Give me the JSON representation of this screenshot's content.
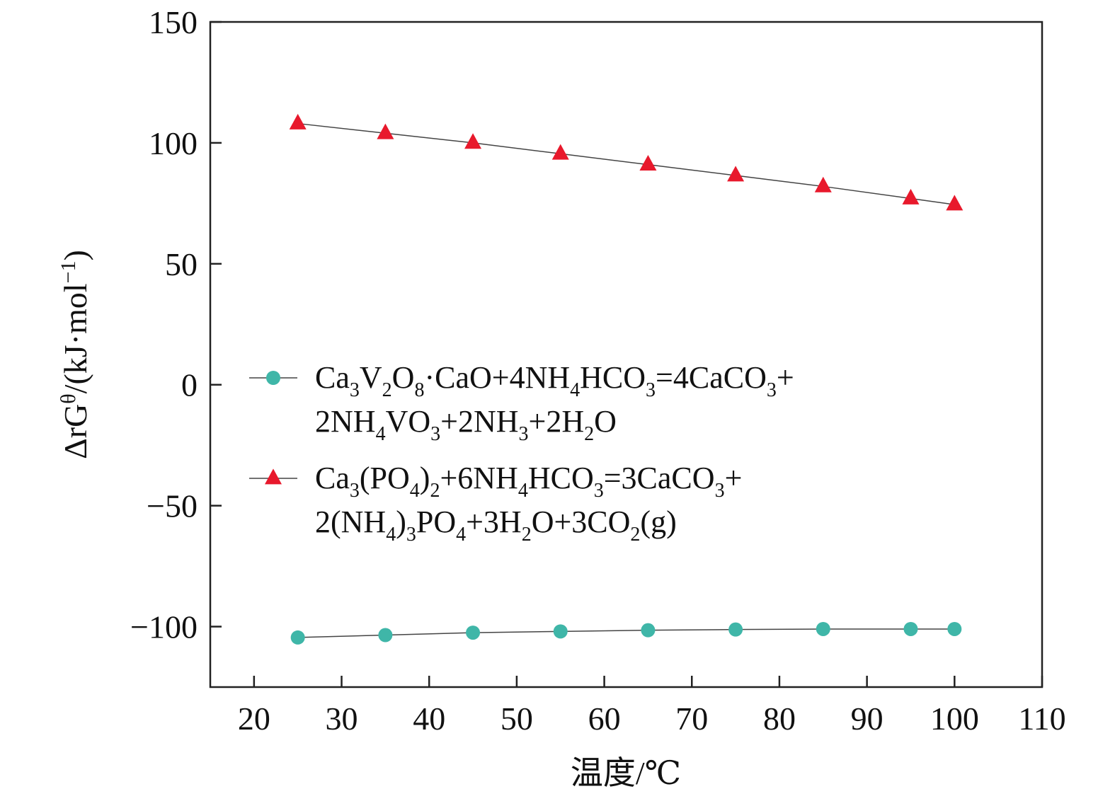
{
  "chart_data": {
    "type": "line",
    "xlabel": "温度/℃",
    "ylabel": {
      "pre": "ΔrG",
      "sup1": "θ",
      "mid": "/(kJ·mol",
      "sup2": "−1",
      "post": ")"
    },
    "xlim": [
      15,
      110
    ],
    "ylim": [
      -125,
      150
    ],
    "xticks": [
      20,
      30,
      40,
      50,
      60,
      70,
      80,
      90,
      100,
      110
    ],
    "yticks": [
      -100,
      -50,
      0,
      50,
      100,
      150
    ],
    "ytick_labels": [
      "−100",
      "−50",
      "0",
      "50",
      "100",
      "150"
    ],
    "grid": false,
    "legend_position": "center-left",
    "series": [
      {
        "name": "Ca3V2O8·CaO+4NH4HCO3=4CaCO3+2NH4VO3+2NH3+2H2O",
        "name_lines": [
          [
            [
              "Ca",
              ""
            ],
            [
              "3",
              "sub"
            ],
            [
              "V",
              ""
            ],
            [
              "2",
              "sub"
            ],
            [
              "O",
              ""
            ],
            [
              "8",
              "sub"
            ],
            [
              "·CaO+4NH",
              ""
            ],
            [
              "4",
              "sub"
            ],
            [
              "HCO",
              ""
            ],
            [
              "3",
              "sub"
            ],
            [
              "=4CaCO",
              ""
            ],
            [
              "3",
              "sub"
            ],
            [
              "+",
              ""
            ]
          ],
          [
            [
              "2NH",
              ""
            ],
            [
              "4",
              "sub"
            ],
            [
              "VO",
              ""
            ],
            [
              "3",
              "sub"
            ],
            [
              "+2NH",
              ""
            ],
            [
              "3",
              "sub"
            ],
            [
              "+2H",
              ""
            ],
            [
              "2",
              "sub"
            ],
            [
              "O",
              ""
            ]
          ]
        ],
        "marker": "circle",
        "color": "#3fb6a8",
        "x": [
          25,
          35,
          45,
          55,
          65,
          75,
          85,
          95,
          100
        ],
        "y": [
          -104.5,
          -103.5,
          -102.5,
          -102.0,
          -101.5,
          -101.2,
          -101.0,
          -101.0,
          -101.0
        ]
      },
      {
        "name": "Ca3(PO4)2+6NH4HCO3=3CaCO3+2(NH4)3PO4+3H2O+3CO2(g)",
        "name_lines": [
          [
            [
              "Ca",
              ""
            ],
            [
              "3",
              "sub"
            ],
            [
              "(PO",
              ""
            ],
            [
              "4",
              "sub"
            ],
            [
              ")",
              ""
            ],
            [
              "2",
              "sub"
            ],
            [
              "+6NH",
              ""
            ],
            [
              "4",
              "sub"
            ],
            [
              "HCO",
              ""
            ],
            [
              "3",
              "sub"
            ],
            [
              "=3CaCO",
              ""
            ],
            [
              "3",
              "sub"
            ],
            [
              "+",
              ""
            ]
          ],
          [
            [
              "2(NH",
              ""
            ],
            [
              "4",
              "sub"
            ],
            [
              ")",
              ""
            ],
            [
              "3",
              "sub"
            ],
            [
              "PO",
              ""
            ],
            [
              "4",
              "sub"
            ],
            [
              "+3H",
              ""
            ],
            [
              "2",
              "sub"
            ],
            [
              "O+3CO",
              ""
            ],
            [
              "2",
              "sub"
            ],
            [
              "(g)",
              ""
            ]
          ]
        ],
        "marker": "triangle",
        "color": "#e8192c",
        "x": [
          25,
          35,
          45,
          55,
          65,
          75,
          85,
          95,
          100
        ],
        "y": [
          108.0,
          104.0,
          100.0,
          95.5,
          91.0,
          86.5,
          82.0,
          77.0,
          74.5
        ]
      }
    ]
  }
}
